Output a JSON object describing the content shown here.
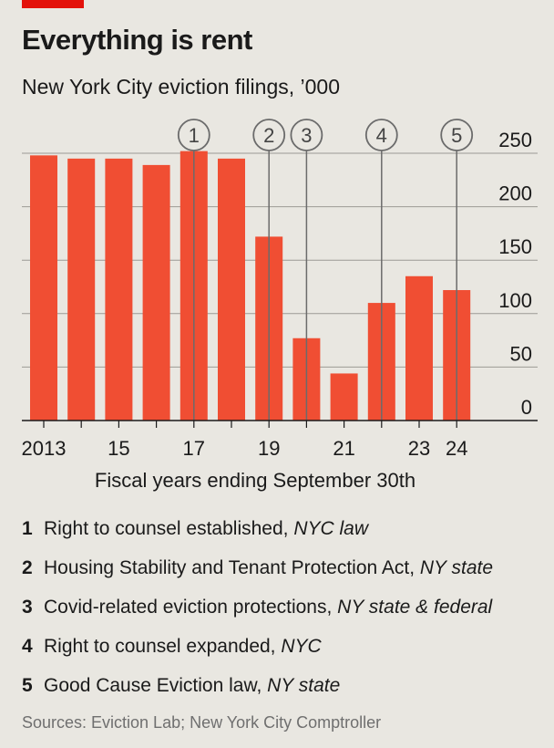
{
  "title": "Everything is rent",
  "subtitle": "New York City eviction filings, ’000",
  "chart_data": {
    "type": "bar",
    "title": "Everything is rent",
    "subtitle": "New York City eviction filings, ’000",
    "xlabel": "Fiscal years ending September 30th",
    "ylabel": "",
    "ylim": [
      0,
      250
    ],
    "yticks": [
      0,
      50,
      100,
      150,
      200,
      250
    ],
    "y_axis_side": "right",
    "grid": true,
    "bar_color": "#f04e33",
    "categories": [
      "2013",
      "2014",
      "2015",
      "2016",
      "2017",
      "2018",
      "2019",
      "2020",
      "2021",
      "2022",
      "2023",
      "2024"
    ],
    "xtick_labels": [
      "2013",
      "",
      "15",
      "",
      "17",
      "",
      "19",
      "",
      "21",
      "",
      "23",
      "24"
    ],
    "values": [
      248,
      245,
      245,
      239,
      252,
      245,
      172,
      77,
      44,
      110,
      135,
      122
    ],
    "events": [
      {
        "marker": "1",
        "year": "2017",
        "label": "Right to counsel established",
        "place": "NYC law"
      },
      {
        "marker": "2",
        "year": "2019",
        "label": "Housing Stability and Tenant Protection Act",
        "place": "NY state"
      },
      {
        "marker": "3",
        "year": "2020",
        "label": "Covid-related eviction protections",
        "place": "NY state & federal"
      },
      {
        "marker": "4",
        "year": "2022",
        "label": "Right to counsel expanded",
        "place": "NYC"
      },
      {
        "marker": "5",
        "year": "2024",
        "label": "Good Cause Eviction law",
        "place": "NY state"
      }
    ]
  },
  "notes": [
    {
      "num": "1",
      "text": "Right to counsel established, ",
      "place": "NYC law"
    },
    {
      "num": "2",
      "text": "Housing Stability and Tenant Protection Act, ",
      "place": "NY state"
    },
    {
      "num": "3",
      "text": "Covid-related eviction protections, ",
      "place": "NY state & federal"
    },
    {
      "num": "4",
      "text": "Right to counsel expanded, ",
      "place": "NYC"
    },
    {
      "num": "5",
      "text": "Good Cause Eviction law, ",
      "place": "NY state"
    }
  ],
  "source": "Sources: Eviction Lab; New York City Comptroller",
  "colors": {
    "accent": "#e3120b",
    "bar": "#f04e33",
    "background": "#e9e7e1",
    "marker": "#6b6b6b"
  }
}
